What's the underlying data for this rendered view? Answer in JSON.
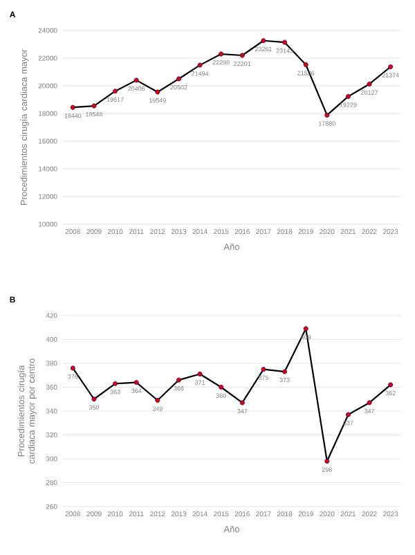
{
  "chart_data": [
    {
      "type": "line",
      "title": "A",
      "xlabel": "Año",
      "ylabel": "Procedimientos cirugía cardiaca mayor",
      "categories": [
        "2008",
        "2009",
        "2010",
        "2011",
        "2012",
        "2013",
        "2014",
        "2015",
        "2016",
        "2017",
        "2018",
        "2019",
        "2020",
        "2021",
        "2022",
        "2023"
      ],
      "series": [
        {
          "color": "#000000",
          "values": [
            18440,
            18548,
            19617,
            20406,
            19549,
            20502,
            21494,
            22298,
            22201,
            23261,
            23143,
            21526,
            17880,
            19229,
            20127,
            21374
          ]
        }
      ],
      "ylim": [
        10000,
        24000
      ],
      "yticks": [
        10000,
        12000,
        14000,
        16000,
        18000,
        20000,
        22000,
        24000
      ],
      "grid": "y",
      "marker": "circle",
      "line_style": "solid",
      "data_labels": true
    },
    {
      "type": "line",
      "title": "B",
      "xlabel": "Año",
      "ylabel": "Procedimientos cirugía cardiaca mayor por centro",
      "categories": [
        "2008",
        "2009",
        "2010",
        "2011",
        "2012",
        "2013",
        "2014",
        "2015",
        "2016",
        "2017",
        "2018",
        "2019",
        "2020",
        "2021",
        "2022",
        "2023"
      ],
      "series": [
        {
          "color": "#000000",
          "values": [
            376,
            350,
            363,
            364,
            349,
            366,
            371,
            360,
            347,
            375,
            373,
            409,
            298,
            337,
            347,
            362
          ]
        }
      ],
      "ylim": [
        260,
        420
      ],
      "yticks": [
        260,
        280,
        300,
        320,
        340,
        360,
        380,
        400,
        420
      ],
      "grid": "y",
      "marker": "circle",
      "line_style": "solid",
      "data_labels": true
    }
  ]
}
